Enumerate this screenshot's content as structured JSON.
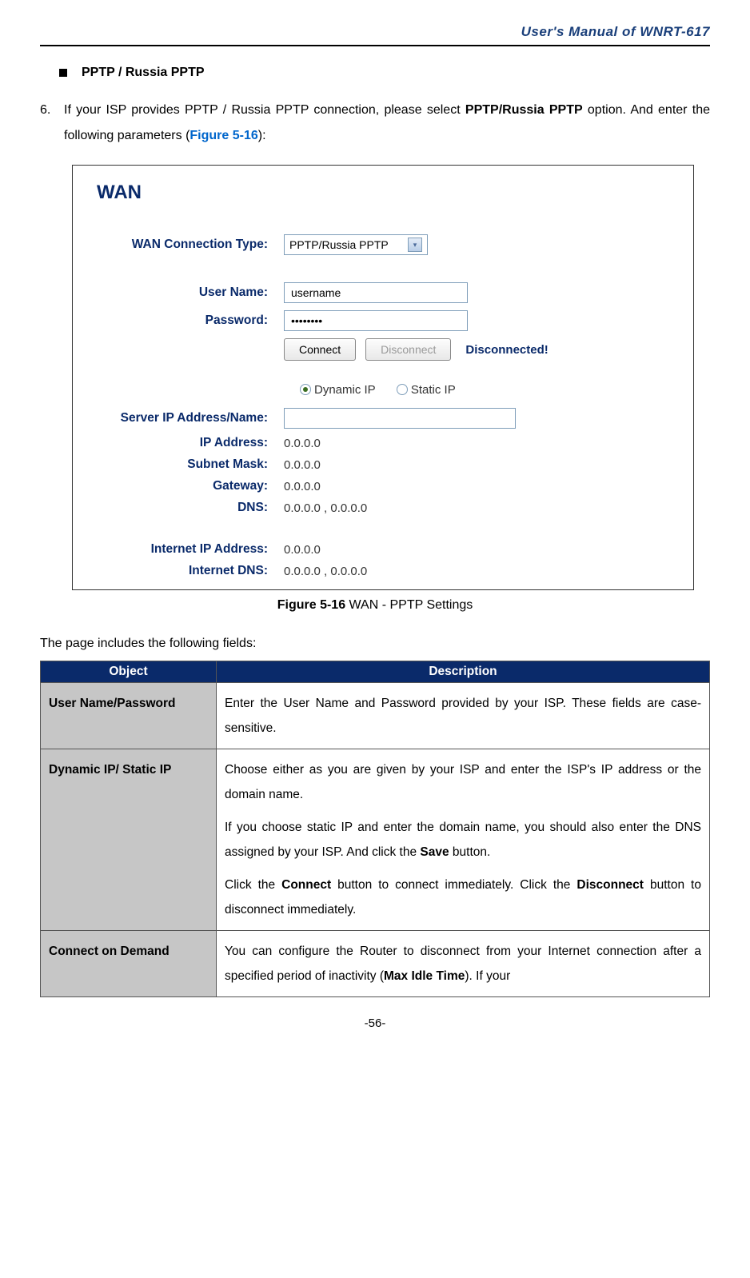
{
  "header": {
    "title": "User's  Manual  of  WNRT-617"
  },
  "bullet": {
    "text": "PPTP / Russia PPTP"
  },
  "para": {
    "num": "6.",
    "line1a": "If your ISP provides PPTP / Russia PPTP connection, please select ",
    "line1b": "PPTP/Russia PPTP",
    "line1c": " option. And enter the following parameters (",
    "figref": "Figure 5-16",
    "line1d": "):"
  },
  "screenshot": {
    "title": "WAN",
    "labels": {
      "conn_type": "WAN Connection Type:",
      "user": "User Name:",
      "pass": "Password:",
      "server": "Server IP Address/Name:",
      "ip": "IP Address:",
      "mask": "Subnet Mask:",
      "gw": "Gateway:",
      "dns": "DNS:",
      "inet_ip": "Internet IP Address:",
      "inet_dns": "Internet DNS:"
    },
    "values": {
      "conn_type": "PPTP/Russia PPTP",
      "user": "username",
      "pass": "••••••••",
      "server": "",
      "ip": "0.0.0.0",
      "mask": "0.0.0.0",
      "gw": "0.0.0.0",
      "dns": "0.0.0.0 , 0.0.0.0",
      "inet_ip": "0.0.0.0",
      "inet_dns": "0.0.0.0 , 0.0.0.0"
    },
    "buttons": {
      "connect": "Connect",
      "disconnect": "Disconnect"
    },
    "status": "Disconnected!",
    "radios": {
      "dynamic": "Dynamic IP",
      "static": "Static IP"
    }
  },
  "caption": {
    "label": "Figure 5-16",
    "text": "    WAN - PPTP Settings"
  },
  "intro": "The page includes the following fields:",
  "table": {
    "head": {
      "obj": "Object",
      "desc": "Description"
    },
    "rows": [
      {
        "obj": "User Name/Password",
        "desc_p1": "Enter the User Name and Password provided by your ISP. These fields are case-sensitive."
      },
      {
        "obj": "Dynamic IP/ Static IP",
        "desc_p1": "Choose either as you are given by your ISP and enter the ISP's IP address or the domain name.",
        "desc_p2a": "If you choose static IP and enter the domain name, you should also enter the DNS assigned by your ISP. And click the ",
        "desc_p2b": "Save",
        "desc_p2c": " button.",
        "desc_p3a": "Click the ",
        "desc_p3b": "Connect",
        "desc_p3c": " button to connect immediately. Click the ",
        "desc_p3d": "Disconnect",
        "desc_p3e": " button to disconnect immediately."
      },
      {
        "obj": "Connect on Demand",
        "desc_p1a": "You can configure the Router to disconnect from your Internet connection after a specified period of inactivity (",
        "desc_p1b": "Max Idle Time",
        "desc_p1c": "). If your"
      }
    ]
  },
  "footer": "-56-"
}
